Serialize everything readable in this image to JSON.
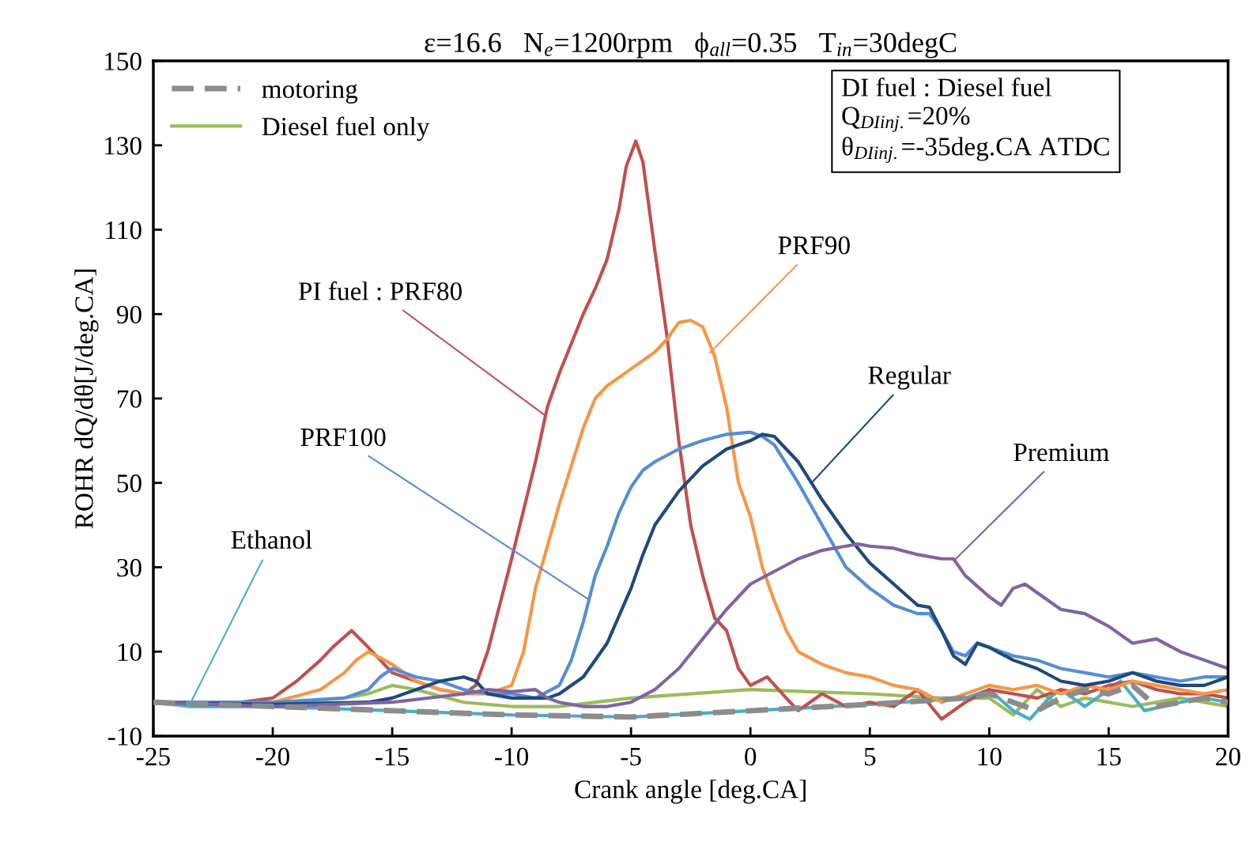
{
  "chart_data": {
    "type": "line",
    "title": "ε=16.6   N$_{e}$=1200rpm   ϕ$_{all}$=0.35   T$_{in}$=30degC",
    "xlabel": "Crank angle [deg.CA]",
    "ylabel": "ROHR dQ/dθ[J/deg.CA]",
    "xlim": [
      -25,
      20
    ],
    "xticks": [
      -25,
      -20,
      -15,
      -10,
      -5,
      0,
      5,
      10,
      15,
      20
    ],
    "ylim": [
      -10,
      150
    ],
    "yticks": [
      -10,
      10,
      30,
      50,
      70,
      90,
      110,
      130,
      150
    ],
    "grid": false,
    "legend": "top left",
    "annotations": [
      "DI fuel : Diesel fuel\nQ$_{DIinj.}$=20%\nθ$_{DIinj.}$=-35deg.CA ATDC",
      {
        "text": "Ethanol",
        "x": -23.5,
        "y": -2.8
      },
      {
        "text": "PI fuel : PRF80",
        "x": -8.6,
        "y": 66
      },
      {
        "text": "PRF90",
        "x": -1.7,
        "y": 80.8
      },
      {
        "text": "PRF100",
        "x": -6.75,
        "y": 22.3
      },
      {
        "text": "Regular",
        "x": 2.56,
        "y": 50
      },
      {
        "text": "Premium",
        "x": 8.6,
        "y": 32
      }
    ],
    "series": [
      {
        "name": "motoring",
        "color": "#8c8c8c",
        "line_style": "dashed",
        "x": [
          -25,
          -20,
          -15,
          -10,
          -5,
          0,
          5,
          9,
          10,
          11,
          12,
          13,
          14,
          15,
          16,
          17,
          18,
          19,
          20
        ],
        "values": [
          -2,
          -3,
          -4,
          -5,
          -5.5,
          -4,
          -2.5,
          -1,
          0,
          -2,
          -4,
          -1,
          1,
          0,
          2,
          -3,
          -2,
          -1,
          -2
        ]
      },
      {
        "name": "Diesel fuel only",
        "color": "#9bbb59",
        "line_style": "solid",
        "x": [
          -25,
          -20,
          -17,
          -16,
          -15,
          -14,
          -12,
          -10,
          -8,
          -5,
          0,
          5,
          8,
          10,
          11,
          12,
          13,
          14,
          16,
          18,
          20
        ],
        "values": [
          -2,
          -2.5,
          -1,
          0,
          2,
          1,
          -2,
          -3,
          -3,
          -1,
          1,
          0,
          -1,
          -1,
          -5,
          1,
          -3,
          -1,
          -3,
          -1,
          -3
        ]
      },
      {
        "color": "#4bacc6",
        "line_style": "solid",
        "x": [
          -25,
          -23.5,
          -20,
          -15,
          -10,
          -5,
          0,
          5,
          9,
          10,
          11,
          11.7,
          12.5,
          13,
          14,
          15,
          15.5,
          16.5,
          18,
          19,
          20
        ],
        "values": [
          -2,
          -3,
          -3,
          -4,
          -5,
          -5.5,
          -4,
          -2.5,
          -1,
          1,
          -4,
          -6,
          -1,
          1,
          -3,
          1,
          3,
          -4,
          -2,
          -1,
          -2
        ]
      },
      {
        "color": "#c0504d",
        "line_style": "solid",
        "x": [
          -25,
          -22,
          -20,
          -19,
          -18,
          -17.5,
          -17,
          -16.7,
          -16,
          -15,
          -14,
          -13,
          -12,
          -11.5,
          -11,
          -10,
          -9,
          -8.5,
          -8,
          -7,
          -6.5,
          -6,
          -5.5,
          -5.2,
          -4.8,
          -4.5,
          -4,
          -3.5,
          -3,
          -2.5,
          -2,
          -1.5,
          -1,
          -0.5,
          0,
          0.7,
          1.5,
          2,
          3,
          4,
          5,
          6,
          7,
          8,
          9,
          10,
          11,
          12,
          13,
          14,
          15,
          16,
          17,
          18,
          19,
          20
        ],
        "values": [
          -2,
          -2.5,
          -1,
          3,
          8,
          11,
          13.5,
          15,
          11,
          5,
          3,
          1,
          0,
          2,
          10,
          32,
          55,
          68,
          76,
          90,
          96,
          103,
          115,
          125,
          131,
          126,
          105,
          85,
          60,
          40,
          28,
          18,
          15,
          6,
          2,
          4,
          -1,
          -4,
          0,
          -3,
          -2,
          -3,
          1,
          -6,
          -2,
          1,
          0,
          -1,
          1,
          0,
          2,
          3,
          1,
          0,
          0,
          -1
        ]
      },
      {
        "color": "#f79646",
        "line_style": "solid",
        "x": [
          -25,
          -20,
          -18,
          -17,
          -16.5,
          -16,
          -15,
          -14,
          -13,
          -12,
          -11,
          -10,
          -9.5,
          -9,
          -8,
          -7,
          -6.5,
          -6,
          -5,
          -4,
          -3.5,
          -3,
          -2.5,
          -2,
          -1.5,
          -1,
          -0.5,
          0,
          0.5,
          1,
          1.5,
          2,
          3,
          4,
          5,
          6,
          7,
          8,
          9,
          10,
          11,
          12,
          13,
          14,
          15,
          16,
          17,
          18,
          19,
          20
        ],
        "values": [
          -2,
          -2,
          1,
          5,
          8,
          10,
          7,
          3,
          1,
          0,
          0,
          2,
          10,
          25,
          45,
          63,
          70,
          73,
          77,
          81,
          84,
          88,
          88.5,
          87,
          80,
          68,
          50,
          42,
          30,
          22,
          15,
          10,
          7,
          5,
          4,
          2,
          1,
          -2,
          0,
          2,
          1,
          2,
          0,
          2,
          1,
          3,
          2,
          1,
          0,
          1
        ]
      },
      {
        "color": "#558ed5",
        "line_style": "solid",
        "x": [
          -25,
          -20,
          -17,
          -16,
          -15.5,
          -15,
          -14,
          -13,
          -12,
          -11,
          -10,
          -9,
          -8,
          -7.5,
          -7,
          -6.5,
          -6,
          -5.5,
          -5,
          -4.5,
          -4,
          -3,
          -2,
          -1,
          0,
          0.5,
          1,
          2,
          3,
          4,
          5,
          6,
          7,
          7.5,
          8,
          8.5,
          9,
          9.5,
          10,
          11,
          12,
          13,
          14,
          15,
          16,
          17,
          18,
          19,
          20
        ],
        "values": [
          -2,
          -2,
          -1,
          1,
          4,
          6,
          4,
          3,
          1,
          0,
          0,
          -1,
          2,
          8,
          17,
          28,
          35,
          43,
          49,
          53,
          55,
          58,
          60,
          61.5,
          62,
          61,
          59,
          50,
          40,
          30,
          25,
          21,
          19,
          19,
          15,
          10,
          9,
          12,
          11,
          9,
          8,
          6,
          5,
          4,
          5,
          4,
          3,
          4,
          4
        ]
      },
      {
        "color": "#1f497d",
        "line_style": "solid",
        "x": [
          -25,
          -20,
          -16,
          -15,
          -14,
          -13,
          -12,
          -11.5,
          -11,
          -10,
          -9,
          -8.5,
          -8,
          -7,
          -6,
          -5,
          -4.5,
          -4,
          -3,
          -2,
          -1,
          0,
          0.5,
          1,
          2,
          3,
          4,
          5,
          6,
          7,
          7.5,
          8,
          8.5,
          9,
          9.5,
          10,
          11,
          12,
          13,
          14,
          15,
          16,
          17,
          18,
          19,
          20
        ],
        "values": [
          -2,
          -2.5,
          -2,
          -1,
          1,
          3,
          4,
          3,
          0,
          -1,
          -1,
          -1,
          0,
          4,
          12,
          25,
          33,
          40,
          48,
          54,
          58,
          60,
          61.5,
          61,
          55,
          46,
          38,
          31,
          26,
          21,
          20.5,
          15,
          9,
          7,
          12,
          11,
          8,
          6,
          3,
          2,
          3,
          5,
          3,
          2,
          2,
          4
        ]
      },
      {
        "color": "#8064a2",
        "line_style": "solid",
        "x": [
          -25,
          -20,
          -15,
          -12,
          -11,
          -10,
          -9,
          -8.5,
          -8,
          -7,
          -6,
          -5,
          -4,
          -3,
          -2,
          -1,
          0,
          1,
          2,
          3,
          4,
          4.5,
          5,
          6,
          7,
          8,
          8.5,
          9,
          10,
          10.5,
          11,
          11.5,
          12,
          13,
          14,
          15,
          16,
          17,
          18,
          19,
          20
        ],
        "values": [
          -2,
          -3,
          -2,
          0,
          1,
          0.5,
          1,
          -1,
          -2,
          -3,
          -3,
          -2,
          1,
          6,
          13,
          20,
          26,
          29,
          32,
          34,
          35,
          35.5,
          35,
          34.5,
          33,
          32,
          32,
          28,
          23,
          21,
          25,
          26,
          24,
          20,
          19,
          16,
          12,
          13,
          10,
          8,
          6
        ]
      }
    ]
  }
}
